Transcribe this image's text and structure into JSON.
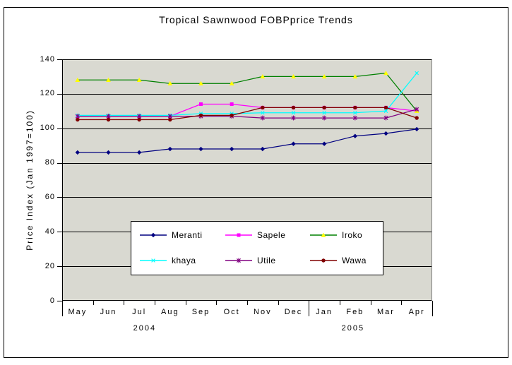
{
  "title": "Tropical Sawnwood FOBPprice Trends",
  "colors": {
    "plot_bg": "#D9D9D1",
    "grid": "#000000",
    "plot_right_edge": "#808080",
    "legend_bg": "#FFFFFF",
    "frame_border": "#000000"
  },
  "chart_data": {
    "type": "line",
    "title": "Tropical Sawnwood FOBPprice Trends",
    "xlabel": "",
    "ylabel": "Price Index (Jan 1997=100)",
    "ylim": [
      0,
      140
    ],
    "yticks": [
      0,
      20,
      40,
      60,
      80,
      100,
      120,
      140
    ],
    "grid": true,
    "legend_position": "bottom-center-overlay",
    "categories": [
      "May",
      "Jun",
      "Jul",
      "Aug",
      "Sep",
      "Oct",
      "Nov",
      "Dec",
      "Jan",
      "Feb",
      "Mar",
      "Apr"
    ],
    "year_labels": [
      {
        "label": "2004",
        "frac": 0.223
      },
      {
        "label": "2005",
        "frac": 0.786
      }
    ],
    "series": [
      {
        "name": "Meranti",
        "color": "#000080",
        "marker": "diamond",
        "marker_color": "#000080",
        "values": [
          86,
          86,
          86,
          88,
          88,
          88,
          88,
          91,
          91,
          95.5,
          97,
          99.5
        ]
      },
      {
        "name": "Sapele",
        "color": "#FF00FF",
        "marker": "square",
        "marker_color": "#FF00FF",
        "values": [
          107,
          107,
          107,
          107,
          114,
          114,
          112,
          112,
          112,
          112,
          112,
          110
        ]
      },
      {
        "name": "Iroko",
        "color": "#008000",
        "marker": "triangle",
        "marker_color": "#FFFF00",
        "values": [
          128,
          128,
          128,
          126,
          126,
          126,
          130,
          130,
          130,
          130,
          132,
          110
        ]
      },
      {
        "name": "khaya",
        "color": "#00FFFF",
        "marker": "x",
        "marker_color": "#00FFFF",
        "values": [
          107.5,
          107.5,
          107.5,
          107.5,
          108.5,
          108.5,
          109,
          109,
          109,
          109,
          110,
          132
        ]
      },
      {
        "name": "Utile",
        "color": "#800080",
        "marker": "asterisk",
        "marker_color": "#800080",
        "values": [
          107,
          107,
          107,
          107,
          107,
          107,
          106,
          106,
          106,
          106,
          106,
          111
        ]
      },
      {
        "name": "Wawa",
        "color": "#800000",
        "marker": "circle",
        "marker_color": "#800000",
        "values": [
          105,
          105,
          105,
          105,
          107.5,
          107.5,
          112,
          112,
          112,
          112,
          112,
          106
        ]
      }
    ]
  }
}
